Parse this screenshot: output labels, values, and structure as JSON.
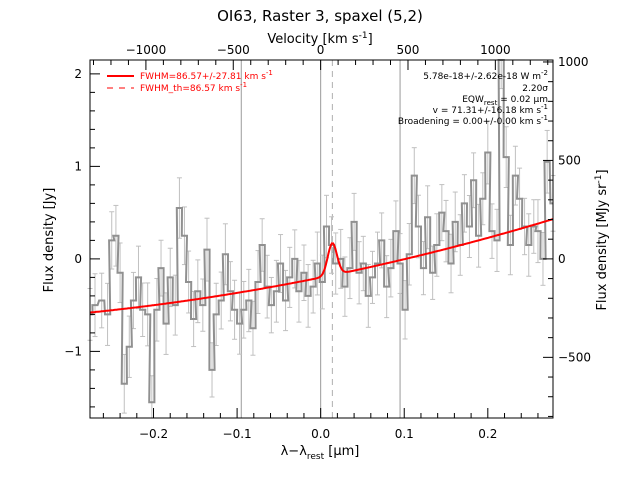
{
  "title": "OI63, Raster 3, spaxel (5,2)",
  "colors": {
    "data": "#909090",
    "fit": "#ff0000",
    "marker": "#a8a8a8",
    "axis": "#000000"
  },
  "legend": {
    "fit_label": "FWHM=86.57+/-27.81 km s",
    "fit_sup": "-1",
    "th_label": "FWHM_th=86.57 km s",
    "th_sup": "-1"
  },
  "annotations": {
    "flux_main": "5.78e-18+/-2.62e-18 W m",
    "flux_sup": "-2",
    "sigma": "2.20σ",
    "eqw_pre": "EQW",
    "eqw_sub": "rest",
    "eqw_post": " = 0.02 μm",
    "v_text": "v = 71.31+/-16.18 km s",
    "v_sup": "-1",
    "broad_text": "Broadening = 0.00+/-0.00 km s",
    "broad_sup": "-1"
  },
  "axes": {
    "xlabel_pre": "λ−λ",
    "xlabel_sub": "rest",
    "xlabel_post": " [μm]",
    "ylabel_left": "Flux density [Jy]",
    "ylabel_right": "Flux density [MJy sr",
    "ylabel_right_sup": "-1",
    "ylabel_right_post": "]",
    "top_label": "Velocity [km s",
    "top_sup": "-1",
    "top_post": "]",
    "xticks": [
      "−0.2",
      "−0.1",
      "0.0",
      "0.1",
      "0.2"
    ],
    "yticks_left": [
      "−1",
      "0",
      "1",
      "2"
    ],
    "yticks_right": [
      "−500",
      "0",
      "500",
      "1000"
    ],
    "xticks_top": [
      "−1000",
      "−500",
      "0",
      "500",
      "1000"
    ]
  },
  "chart_data": {
    "type": "line",
    "xlim": [
      -0.276,
      0.278
    ],
    "ylim": [
      -1.72,
      2.15
    ],
    "right_ylim": [
      -808,
      1010
    ],
    "top_xlim": [
      -1320,
      1330
    ],
    "x_ticks": [
      -0.2,
      -0.1,
      0.0,
      0.1,
      0.2
    ],
    "y_ticks": [
      -1,
      0,
      1,
      2
    ],
    "right_ticks": [
      -500,
      0,
      500,
      1000
    ],
    "top_ticks": [
      -1000,
      -500,
      0,
      500,
      1000
    ],
    "reference_lines": [
      -0.095,
      0.0,
      0.095
    ],
    "line_center": 0.014,
    "fit": {
      "continuum_left": -0.58,
      "continuum_right": 0.43,
      "continuum_mid": -0.2,
      "peak_x": 0.014,
      "peak_y": 0.17
    },
    "spectrum": [
      [
        -0.276,
        -0.6
      ],
      [
        -0.27,
        -0.5
      ],
      [
        -0.262,
        -0.45
      ],
      [
        -0.255,
        -0.6
      ],
      [
        -0.25,
        0.2
      ],
      [
        -0.245,
        0.25
      ],
      [
        -0.24,
        -0.15
      ],
      [
        -0.235,
        -1.35
      ],
      [
        -0.229,
        -0.95
      ],
      [
        -0.224,
        -0.45
      ],
      [
        -0.218,
        -0.2
      ],
      [
        -0.213,
        -0.55
      ],
      [
        -0.207,
        -0.6
      ],
      [
        -0.202,
        -1.55
      ],
      [
        -0.196,
        -0.55
      ],
      [
        -0.191,
        -0.1
      ],
      [
        -0.185,
        -0.7
      ],
      [
        -0.18,
        -0.2
      ],
      [
        -0.174,
        -0.5
      ],
      [
        -0.169,
        0.55
      ],
      [
        -0.163,
        0.25
      ],
      [
        -0.158,
        -0.25
      ],
      [
        -0.152,
        -0.65
      ],
      [
        -0.147,
        -0.35
      ],
      [
        -0.141,
        -0.5
      ],
      [
        -0.136,
        0.1
      ],
      [
        -0.13,
        -1.2
      ],
      [
        -0.125,
        -0.6
      ],
      [
        -0.119,
        -0.45
      ],
      [
        -0.114,
        0.05
      ],
      [
        -0.108,
        -0.35
      ],
      [
        -0.103,
        -0.55
      ],
      [
        -0.097,
        -0.7
      ],
      [
        -0.092,
        -0.55
      ],
      [
        -0.086,
        -0.45
      ],
      [
        -0.081,
        -0.75
      ],
      [
        -0.075,
        -0.25
      ],
      [
        -0.07,
        0.15
      ],
      [
        -0.064,
        -0.3
      ],
      [
        -0.059,
        -0.5
      ],
      [
        -0.053,
        -0.35
      ],
      [
        -0.048,
        -0.05
      ],
      [
        -0.042,
        -0.45
      ],
      [
        -0.037,
        -0.2
      ],
      [
        -0.031,
        0.0
      ],
      [
        -0.026,
        -0.35
      ],
      [
        -0.02,
        -0.15
      ],
      [
        -0.015,
        -0.4
      ],
      [
        -0.009,
        -0.3
      ],
      [
        -0.004,
        -0.05
      ],
      [
        0.002,
        -0.25
      ],
      [
        0.007,
        0.35
      ],
      [
        0.013,
        0.15
      ],
      [
        0.018,
        -0.05
      ],
      [
        0.024,
        0.0
      ],
      [
        0.029,
        -0.3
      ],
      [
        0.035,
        -0.1
      ],
      [
        0.04,
        0.4
      ],
      [
        0.046,
        -0.15
      ],
      [
        0.051,
        -0.05
      ],
      [
        0.057,
        -0.4
      ],
      [
        0.062,
        -0.2
      ],
      [
        0.068,
        -0.05
      ],
      [
        0.073,
        0.2
      ],
      [
        0.079,
        -0.3
      ],
      [
        0.084,
        -0.1
      ],
      [
        0.09,
        0.3
      ],
      [
        0.095,
        -0.05
      ],
      [
        0.101,
        -0.55
      ],
      [
        0.106,
        0.05
      ],
      [
        0.112,
        0.9
      ],
      [
        0.117,
        0.35
      ],
      [
        0.123,
        -0.1
      ],
      [
        0.128,
        0.45
      ],
      [
        0.134,
        -0.15
      ],
      [
        0.139,
        0.15
      ],
      [
        0.145,
        0.5
      ],
      [
        0.15,
        0.3
      ],
      [
        0.156,
        -0.05
      ],
      [
        0.161,
        0.4
      ],
      [
        0.167,
        0.15
      ],
      [
        0.172,
        0.6
      ],
      [
        0.178,
        0.35
      ],
      [
        0.183,
        0.85
      ],
      [
        0.189,
        0.25
      ],
      [
        0.194,
        0.65
      ],
      [
        0.2,
        1.15
      ],
      [
        0.205,
        0.3
      ],
      [
        0.211,
        0.2
      ],
      [
        0.216,
        2.15
      ],
      [
        0.222,
        1.1
      ],
      [
        0.227,
        0.15
      ],
      [
        0.233,
        0.9
      ],
      [
        0.238,
        0.65
      ],
      [
        0.244,
        0.35
      ],
      [
        0.249,
        0.15
      ],
      [
        0.255,
        0.35
      ],
      [
        0.26,
        0.3
      ],
      [
        0.266,
        0.0
      ],
      [
        0.271,
        1.05
      ],
      [
        0.278,
        0.6
      ]
    ]
  }
}
